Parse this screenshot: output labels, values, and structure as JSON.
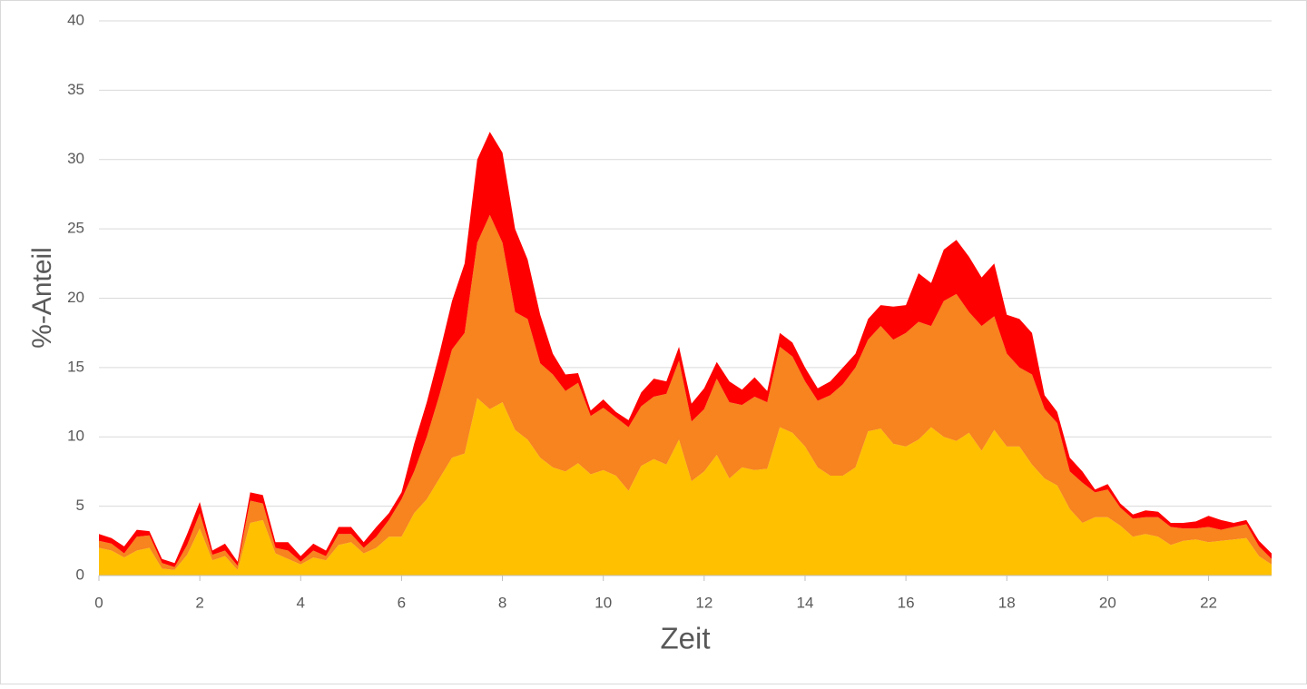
{
  "chart_data": {
    "type": "stacked-area",
    "x_label": "Zeit",
    "y_label": "%-Anteil",
    "xlim": [
      0,
      23.25
    ],
    "xticks": [
      0,
      2,
      4,
      6,
      8,
      10,
      12,
      14,
      16,
      18,
      20,
      22
    ],
    "ylim": [
      0,
      40
    ],
    "yticks": [
      0,
      5,
      10,
      15,
      20,
      25,
      30,
      35,
      40
    ],
    "grid": true,
    "x": [
      0,
      0.25,
      0.5,
      0.75,
      1,
      1.25,
      1.5,
      1.75,
      2,
      2.25,
      2.5,
      2.75,
      3,
      3.25,
      3.5,
      3.75,
      4,
      4.25,
      4.5,
      4.75,
      5,
      5.25,
      5.5,
      5.75,
      6,
      6.25,
      6.5,
      6.75,
      7,
      7.25,
      7.5,
      7.75,
      8,
      8.25,
      8.5,
      8.75,
      9,
      9.25,
      9.5,
      9.75,
      10,
      10.25,
      10.5,
      10.75,
      11,
      11.25,
      11.5,
      11.75,
      12,
      12.25,
      12.5,
      12.75,
      13,
      13.25,
      13.5,
      13.75,
      14,
      14.25,
      14.5,
      14.75,
      15,
      15.25,
      15.5,
      15.75,
      16,
      16.25,
      16.5,
      16.75,
      17,
      17.25,
      17.5,
      17.75,
      18,
      18.25,
      18.5,
      18.75,
      19,
      19.25,
      19.5,
      19.75,
      20,
      20.25,
      20.5,
      20.75,
      21,
      21.25,
      21.5,
      21.75,
      22,
      22.25,
      22.5,
      22.75,
      23,
      23.25
    ],
    "series": [
      {
        "color": "#ffc000",
        "values": [
          2,
          1.8,
          1.3,
          1.8,
          2,
          0.5,
          0.4,
          1.5,
          3.4,
          1.1,
          1.4,
          0.4,
          3.8,
          4.0,
          1.6,
          1.2,
          0.8,
          1.3,
          1.1,
          2.2,
          2.4,
          1.6,
          2.0,
          2.8,
          2.8,
          4.5,
          5.5,
          7.0,
          8.5,
          8.8,
          12.8,
          12.0,
          12.5,
          10.5,
          9.8,
          8.5,
          7.8,
          7.5,
          8.1,
          7.3,
          7.6,
          7.2,
          6.1,
          7.9,
          8.4,
          8.0,
          9.8,
          6.8,
          7.5,
          8.7,
          7.0,
          7.8,
          7.6,
          7.7,
          10.7,
          10.3,
          9.3,
          7.8,
          7.2,
          7.2,
          7.8,
          10.4,
          10.6,
          9.5,
          9.3,
          9.8,
          10.7,
          10.0,
          9.7,
          10.3,
          9.0,
          10.5,
          9.3,
          9.3,
          8.0,
          7.0,
          6.5,
          4.8,
          3.8,
          4.2,
          4.2,
          3.6,
          2.8,
          3.0,
          2.8,
          2.2,
          2.5,
          2.6,
          2.4,
          2.5,
          2.6,
          2.7,
          1.4,
          0.8
        ]
      },
      {
        "color": "#f7841e",
        "values": [
          0.5,
          0.5,
          0.3,
          1.0,
          0.9,
          0.4,
          0.2,
          0.7,
          1.1,
          0.4,
          0.4,
          0.3,
          1.6,
          1.2,
          0.4,
          0.6,
          0.2,
          0.5,
          0.3,
          0.8,
          0.6,
          0.4,
          0.8,
          1.2,
          2.7,
          3.0,
          4.5,
          6.0,
          7.8,
          8.7,
          11.2,
          14.0,
          11.5,
          8.5,
          8.7,
          6.8,
          6.7,
          5.8,
          5.8,
          4.2,
          4.5,
          4.2,
          4.6,
          4.3,
          4.5,
          5.1,
          5.7,
          4.3,
          4.5,
          5.5,
          5.5,
          4.5,
          5.3,
          4.8,
          5.8,
          5.5,
          4.7,
          4.8,
          5.8,
          6.6,
          7.2,
          6.6,
          7.4,
          7.5,
          8.2,
          8.5,
          7.3,
          9.8,
          10.6,
          8.7,
          9.0,
          8.2,
          6.7,
          5.7,
          6.5,
          5.0,
          4.5,
          2.7,
          2.9,
          1.8,
          2.0,
          1.3,
          1.3,
          1.2,
          1.4,
          1.3,
          0.9,
          0.8,
          1.1,
          0.8,
          0.9,
          1.0,
          0.7,
          0.4
        ]
      },
      {
        "color": "#ff0000",
        "values": [
          0.5,
          0.4,
          0.5,
          0.5,
          0.3,
          0.3,
          0.3,
          0.8,
          0.8,
          0.3,
          0.5,
          0.3,
          0.6,
          0.6,
          0.4,
          0.6,
          0.4,
          0.5,
          0.4,
          0.5,
          0.5,
          0.4,
          0.7,
          0.5,
          0.5,
          2.0,
          2.5,
          3.0,
          3.5,
          5.0,
          6.0,
          6.0,
          6.5,
          6.0,
          4.3,
          3.5,
          1.5,
          1.2,
          0.7,
          0.4,
          0.6,
          0.4,
          0.5,
          1.0,
          1.3,
          0.9,
          1.0,
          1.3,
          1.5,
          1.2,
          1.5,
          1.1,
          1.4,
          0.8,
          1.0,
          1.0,
          1.0,
          0.9,
          1.0,
          1.2,
          1.0,
          1.5,
          1.5,
          2.4,
          2.0,
          3.5,
          3.1,
          3.7,
          3.9,
          4.0,
          3.5,
          3.8,
          2.8,
          3.5,
          3.0,
          1.0,
          0.8,
          1.0,
          0.8,
          0.2,
          0.4,
          0.3,
          0.3,
          0.5,
          0.4,
          0.3,
          0.4,
          0.5,
          0.8,
          0.7,
          0.3,
          0.3,
          0.4,
          0.4
        ]
      }
    ]
  }
}
